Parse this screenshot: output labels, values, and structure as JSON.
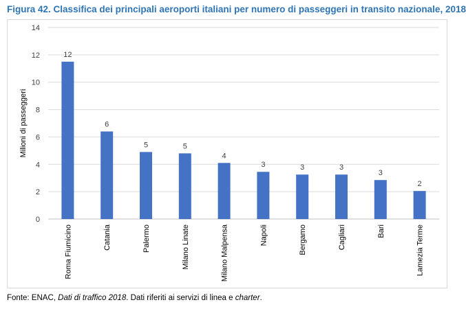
{
  "figure_label": "Figura 42.",
  "figure_title": "Classifica dei principali aeroporti italiani per numero di passeggeri in transito nazionale, 2018",
  "source": {
    "prefix": "Fonte: ENAC, ",
    "publication": "Dati di traffico 2018",
    "middle": ". Dati riferiti ai servizi di linea e ",
    "term": "charter",
    "suffix": "."
  },
  "chart_data": {
    "type": "bar",
    "title": "",
    "xlabel": "",
    "ylabel": "Milioni di passeggeri",
    "ylim": [
      0,
      14
    ],
    "yticks": [
      0,
      2,
      4,
      6,
      8,
      10,
      12,
      14
    ],
    "grid": true,
    "categories": [
      "Roma Fiumicino",
      "Catania",
      "Palermo",
      "Milano Linate",
      "Milano Malpensa",
      "Napoli",
      "Bergamo",
      "Cagliari",
      "Bari",
      "Lamezia Terme"
    ],
    "values": [
      11.5,
      6.4,
      4.9,
      4.8,
      4.1,
      3.45,
      3.25,
      3.25,
      2.85,
      2.05
    ],
    "data_labels": [
      "12",
      "6",
      "5",
      "5",
      "4",
      "3",
      "3",
      "3",
      "3",
      "2"
    ],
    "bar_color": "#4472c4",
    "grid_color": "#d9d9d9",
    "text_color": "#404040"
  }
}
